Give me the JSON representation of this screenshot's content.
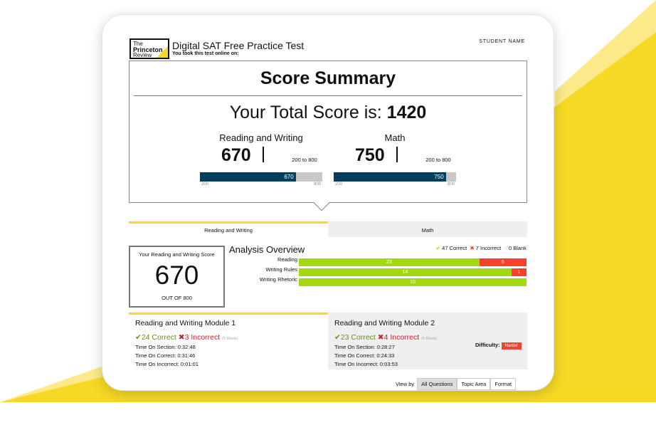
{
  "colors": {
    "accent": "#f5d924",
    "navy": "#033e5e",
    "correct": "#a3d70f",
    "incorrect": "#f5412d"
  },
  "header": {
    "logo": {
      "line1": "The",
      "line2": "Princeton",
      "line3": "Review"
    },
    "title": "Digital SAT Free Practice Test",
    "subtitle": "You took this test online on:",
    "student": "STUDENT NAME"
  },
  "summary": {
    "heading": "Score Summary",
    "total_label": "Your Total Score is:",
    "total": "1420",
    "sections": [
      {
        "name": "Reading and Writing",
        "score": "670",
        "range": "200 to 800",
        "bar_label": "670",
        "min": "200",
        "max": "800",
        "value": 670
      },
      {
        "name": "Math",
        "score": "750",
        "range": "200 to 800",
        "bar_label": "750",
        "min": "200",
        "max": "800",
        "value": 750
      }
    ]
  },
  "tabs": [
    "Reading and Writing",
    "Math"
  ],
  "scorebox": {
    "label": "Your Reading and Writing Score",
    "value": "670",
    "out_of": "OUT OF 800"
  },
  "analysis": {
    "title": "Analysis Overview",
    "legend": {
      "correct": "47 Correct",
      "incorrect": "7 Incorrect",
      "blank": "0 Blank"
    },
    "rows": [
      {
        "label": "Reading",
        "correct": "23",
        "incorrect": "6"
      },
      {
        "label": "Writing Rules",
        "correct": "14",
        "incorrect": "1"
      },
      {
        "label": "Writing Rhetoric",
        "correct": "10",
        "incorrect": ""
      }
    ]
  },
  "modules": [
    {
      "title": "Reading and Writing Module 1",
      "correct": "24 Correct",
      "incorrect": "3 Incorrect",
      "blank": "(0 Blank)",
      "section": "Time On Section: 0:32:48",
      "on_correct": "Time On Correct: 0:31:46",
      "on_incorrect": "Time On Incorrect: 0:01:01"
    },
    {
      "title": "Reading and Writing Module 2",
      "correct": "23 Correct",
      "incorrect": "4 Incorrect",
      "blank": "(0 Blank)",
      "section": "Time On Section: 0:28:27",
      "on_correct": "Time On Correct: 0:24:33",
      "on_incorrect": "Time On Incorrect: 0:03:53",
      "difficulty_label": "Difficulty:",
      "difficulty": "Harder"
    }
  ],
  "viewby": {
    "label": "View by",
    "options": [
      "All Questions",
      "Topic Area",
      "Format"
    ],
    "selected": "All Questions"
  }
}
